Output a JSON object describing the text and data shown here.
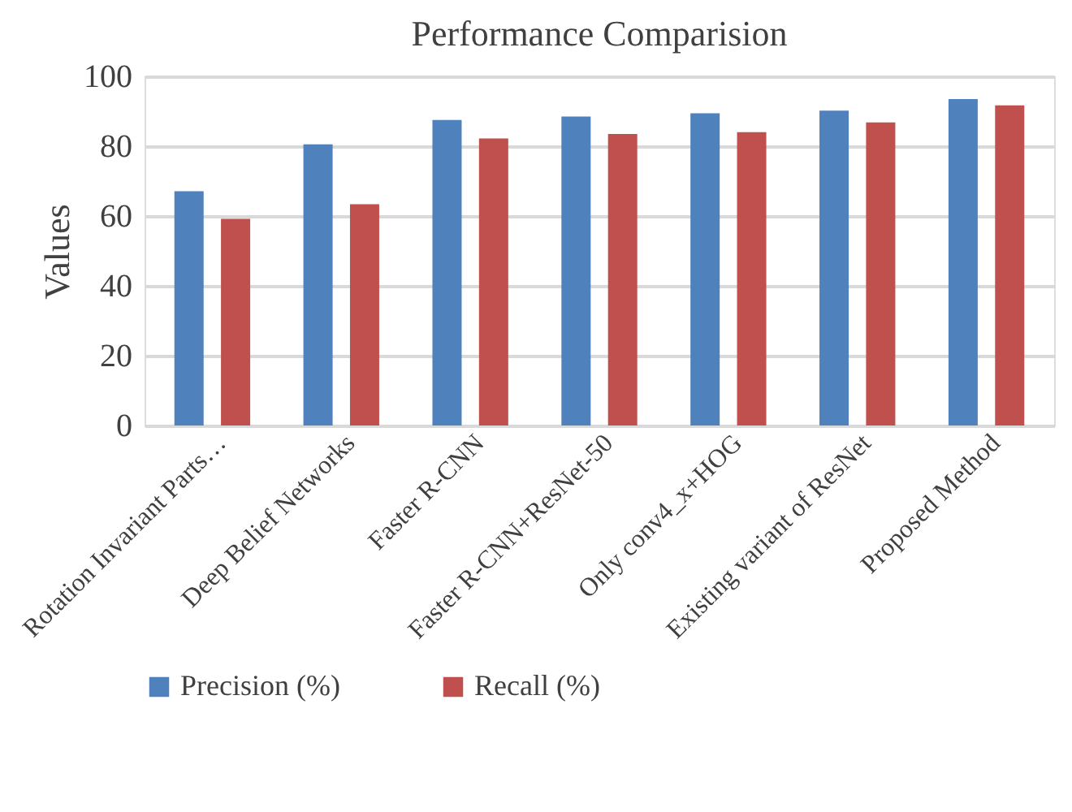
{
  "chart_data": {
    "type": "bar",
    "title": "Performance Comparision",
    "ylabel": "Values",
    "categories": [
      "Rotation Invariant Parts…",
      "Deep Belief Networks",
      "Faster R-CNN",
      "Faster R-CNN+ResNet-50",
      "Only conv4_x+HOG",
      "Existing variant of ResNet",
      "Proposed Method"
    ],
    "series": [
      {
        "name": "Precision (%)",
        "color": "#4f81bd",
        "values": [
          67.1,
          80.5,
          87.5,
          88.5,
          89.4,
          90.2,
          93.5
        ]
      },
      {
        "name": "Recall (%)",
        "color": "#c0504d",
        "values": [
          59.2,
          63.4,
          82.2,
          83.5,
          84.0,
          86.8,
          91.7
        ]
      }
    ],
    "ylim": [
      0,
      100
    ],
    "yticks": [
      0,
      20,
      40,
      60,
      80,
      100
    ],
    "grid": "y",
    "legend": "bottom"
  }
}
